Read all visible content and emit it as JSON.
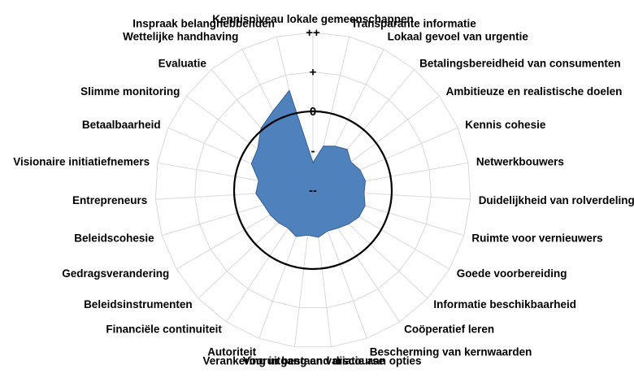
{
  "chart_data": {
    "type": "radar",
    "title": "",
    "categories": [
      "Kennisniveau lokale gemeenschappen",
      "Transparante informatie",
      "Lokaal gevoel van urgentie",
      "Betalingsbereidheid van consumenten",
      "Ambitieuze en realistische doelen",
      "Kennis cohesie",
      "Netwerkbouwers",
      "Duidelijkheid van rolverdeling",
      "Ruimte voor vernieuwers",
      "Goede voorbereiding",
      "Informatie beschikbaarheid",
      "Coöperatief leren",
      "Bescherming van kernwaarden",
      "Vooruitgang en variatie aan opties",
      "Verankering in bestaand discourse",
      "Autoriteit",
      "Financiële continuiteit",
      "Beleidsinstrumenten",
      "Gedragsverandering",
      "Beleidscohesie",
      "Entrepreneurs",
      "Visionaire initiatiefnemers",
      "Betaalbaarheid",
      "Slimme monitoring",
      "Evaluatie",
      "Wettelijke handhaving",
      "Inspraak belanghebbenden"
    ],
    "tick_labels": [
      "--",
      "-",
      "0",
      "+",
      "++"
    ],
    "rlim": [
      -2,
      2
    ],
    "reference_ring": 0,
    "series": [
      {
        "values": [
          -1.3,
          -0.85,
          -0.75,
          -0.65,
          -0.8,
          -0.7,
          -0.65,
          -0.7,
          -0.62,
          -0.65,
          -0.75,
          -0.85,
          -0.9,
          -0.8,
          -0.85,
          -0.75,
          -0.85,
          -0.8,
          -0.75,
          -0.7,
          -0.55,
          -0.6,
          -0.3,
          -0.25,
          0.05,
          0.25,
          0.6
        ],
        "color": "#4f81bd"
      }
    ],
    "grid": true,
    "legend": "none"
  }
}
